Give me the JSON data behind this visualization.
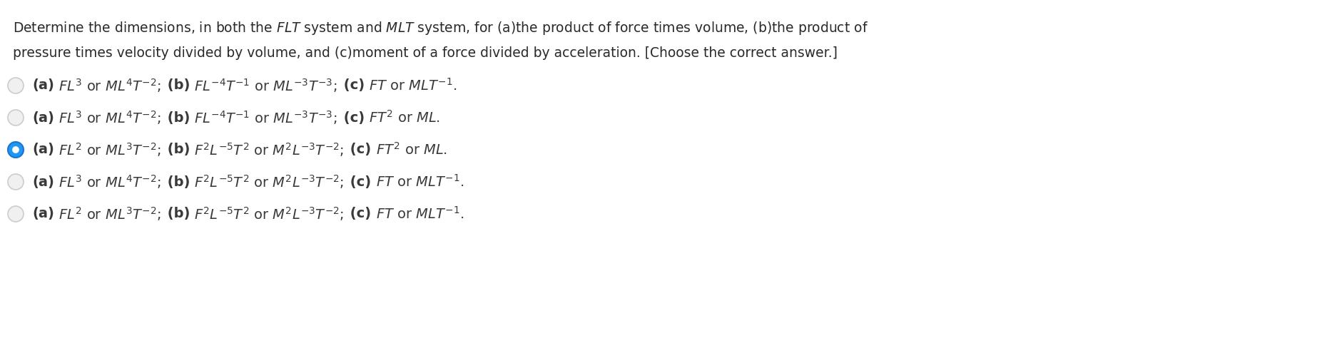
{
  "background_color": "#ffffff",
  "title_line1": "Determine the dimensions, in both the $\\mathit{FLT}$ system and $\\mathit{MLT}$ system, for (a)the product of force times volume, (b)the product of",
  "title_line2": "pressure times velocity divided by volume, and (c)moment of a force divided by acceleration. [Choose the correct answer.]",
  "options": [
    {
      "text_parts": [
        {
          "text": "(a)",
          "bold": true
        },
        {
          "text": " $FL^3$ or $ML^4T^{-2}$; ",
          "bold": false
        },
        {
          "text": " (b)",
          "bold": true
        },
        {
          "text": " $FL^{-4}T^{-1}$ or $ML^{-3}T^{-3}$; ",
          "bold": false
        },
        {
          "text": " (c)",
          "bold": true
        },
        {
          "text": " $FT$ or $MLT^{-1}$.",
          "bold": false
        }
      ],
      "selected": false
    },
    {
      "text_parts": [
        {
          "text": "(a)",
          "bold": true
        },
        {
          "text": " $FL^3$ or $ML^4T^{-2}$; ",
          "bold": false
        },
        {
          "text": " (b)",
          "bold": true
        },
        {
          "text": " $FL^{-4}T^{-1}$ or $ML^{-3}T^{-3}$; ",
          "bold": false
        },
        {
          "text": " (c)",
          "bold": true
        },
        {
          "text": " $FT^2$ or $ML$.",
          "bold": false
        }
      ],
      "selected": false
    },
    {
      "text_parts": [
        {
          "text": "(a)",
          "bold": true
        },
        {
          "text": " $FL^2$ or $ML^3T^{-2}$; ",
          "bold": false
        },
        {
          "text": " (b)",
          "bold": true
        },
        {
          "text": " $F^2L^{-5}T^2$ or $M^2L^{-3}T^{-2}$; ",
          "bold": false
        },
        {
          "text": " (c)",
          "bold": true
        },
        {
          "text": " $FT^2$ or $ML$.",
          "bold": false
        }
      ],
      "selected": true
    },
    {
      "text_parts": [
        {
          "text": "(a)",
          "bold": true
        },
        {
          "text": " $FL^3$ or $ML^4T^{-2}$; ",
          "bold": false
        },
        {
          "text": " (b)",
          "bold": true
        },
        {
          "text": " $F^2L^{-5}T^2$ or $M^2L^{-3}T^{-2}$; ",
          "bold": false
        },
        {
          "text": " (c)",
          "bold": true
        },
        {
          "text": " $FT$ or $MLT^{-1}$.",
          "bold": false
        }
      ],
      "selected": false
    },
    {
      "text_parts": [
        {
          "text": "(a)",
          "bold": true
        },
        {
          "text": " $FL^2$ or $ML^3T^{-2}$; ",
          "bold": false
        },
        {
          "text": " (b)",
          "bold": true
        },
        {
          "text": " $F^2L^{-5}T^2$ or $M^2L^{-3}T^{-2}$; ",
          "bold": false
        },
        {
          "text": " (c)",
          "bold": true
        },
        {
          "text": " $FT$ or $MLT^{-1}$.",
          "bold": false
        }
      ],
      "selected": false
    }
  ],
  "circle_color_unselected_face": "#f0f0f0",
  "circle_color_unselected_edge": "#cccccc",
  "circle_color_selected_face": "#2196F3",
  "circle_color_selected_edge": "#1976D2",
  "circle_inner_color": "#ffffff",
  "text_color": "#3a3a3a",
  "title_color": "#2a2a2a",
  "font_size_title": 13.5,
  "font_size_options": 14.0,
  "fig_width": 18.46,
  "fig_height": 4.88,
  "dpi": 100
}
